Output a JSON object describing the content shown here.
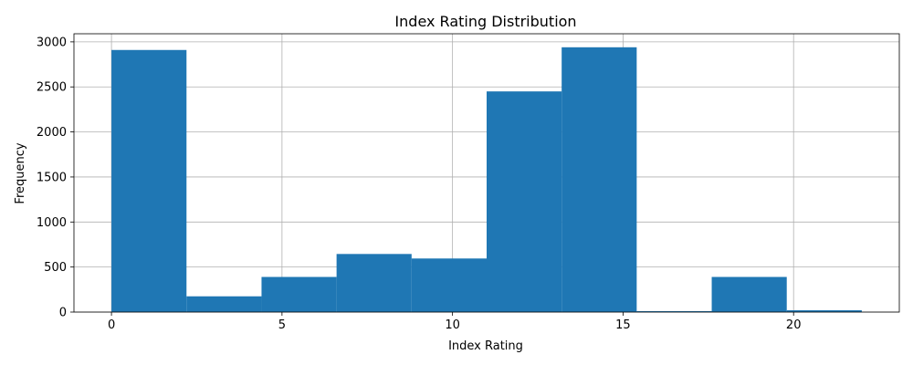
{
  "chart_data": {
    "type": "bar",
    "title": "Index Rating Distribution",
    "xlabel": "Index Rating",
    "ylabel": "Frequency",
    "bin_edges": [
      0,
      2.2,
      4.4,
      6.6,
      8.8,
      11.0,
      13.2,
      15.4,
      17.6,
      19.8,
      22.0
    ],
    "values": [
      2910,
      175,
      390,
      645,
      595,
      2450,
      2940,
      10,
      390,
      20
    ],
    "xlim": [
      -1.1,
      23.1
    ],
    "ylim": [
      0,
      3090
    ],
    "xticks": [
      0,
      5,
      10,
      15,
      20
    ],
    "yticks": [
      0,
      500,
      1000,
      1500,
      2000,
      2500,
      3000
    ],
    "grid": true,
    "bar_color": "#1f77b4"
  }
}
